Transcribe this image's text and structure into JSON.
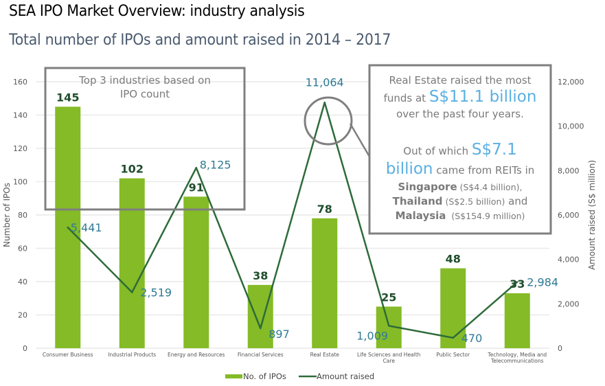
{
  "header": {
    "title": "SEA IPO Market Overview: industry analysis",
    "subtitle": "Total number of IPOs and amount raised in 2014 – 2017"
  },
  "colors": {
    "bar": "#84bb27",
    "line": "#2e6b3a",
    "bar_label": "#1f4e2c",
    "line_label": "#2f7a94",
    "annotation_box": "#7f7f7f",
    "highlight": "#5ab0e2",
    "grid": "#e9e9e9"
  },
  "chart_data": {
    "type": "bar",
    "title": "Total number of IPOs and amount raised in 2014 – 2017",
    "categories": [
      [
        "Consumer Business"
      ],
      [
        "Industrial Products"
      ],
      [
        "Energy and Resources"
      ],
      [
        "Financial Services"
      ],
      [
        "Real Estate"
      ],
      [
        "Life Sciences and Health",
        "Care"
      ],
      [
        "Public Sector"
      ],
      [
        "Technology, Media and",
        "Telecommunications"
      ]
    ],
    "series": [
      {
        "name": "No. of IPOs",
        "type": "bar",
        "axis": "left",
        "values": [
          145,
          102,
          91,
          38,
          78,
          25,
          48,
          33
        ],
        "labels": [
          "145",
          "102",
          "91",
          "38",
          "78",
          "25",
          "48",
          "33"
        ]
      },
      {
        "name": "Amount raised",
        "type": "line",
        "axis": "right",
        "values": [
          5441,
          2519,
          8125,
          897,
          11064,
          1009,
          470,
          2984
        ],
        "labels": [
          "5,441",
          "2,519",
          "8,125",
          "897",
          "11,064",
          "1,009",
          "470",
          "2,984"
        ]
      }
    ],
    "ylabel": "Number of IPOs",
    "ylim": [
      0,
      160
    ],
    "yticks": [
      "0",
      "20",
      "40",
      "60",
      "80",
      "100",
      "120",
      "140",
      "160"
    ],
    "y2label": "Amount raised (S$ million)",
    "y2lim": [
      0,
      12000
    ],
    "y2ticks": [
      "0",
      "2,000",
      "4,000",
      "6,000",
      "8,000",
      "10,000",
      "12,000"
    ],
    "grid": true,
    "legend_position": "bottom-center",
    "annotations": {
      "top3_box": {
        "lines": [
          "Top 3 industries based on",
          "IPO count"
        ]
      },
      "real_estate_box": {
        "line1": "Real Estate raised the most",
        "line2_prefix": "funds at ",
        "line2_big": "S$11.1 billion",
        "line3": "over the past four years.",
        "line4_prefix": "Out of which ",
        "line4_big": "S$7.1",
        "line5_big": "billion",
        "line5_suffix": " came from REITs in",
        "line6_bold": "Singapore",
        "line6_small": " (S$4.4 billion),",
        "line7_bold": "Thailand",
        "line7_small": " (S$2.5 billion)",
        "line7_suffix": " and",
        "line8_bold": "Malaysia",
        "line8_small": "  (S$154.9 million)"
      }
    }
  }
}
